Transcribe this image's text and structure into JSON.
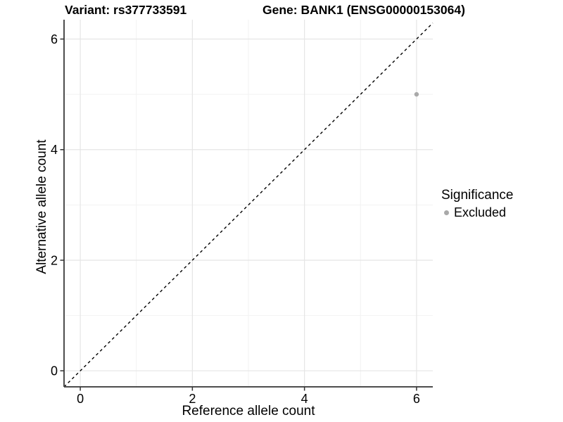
{
  "titles": {
    "variant": "Variant: rs377733591",
    "gene": "Gene: BANK1 (ENSG00000153064)"
  },
  "chart_data": {
    "type": "scatter",
    "title_left": "Variant: rs377733591",
    "title_right": "Gene: BANK1 (ENSG00000153064)",
    "xlabel": "Reference allele count",
    "ylabel": "Alternative allele count",
    "xlim": [
      -0.29,
      6.29
    ],
    "ylim": [
      -0.29,
      6.35
    ],
    "xticks": [
      0,
      2,
      4,
      6
    ],
    "yticks": [
      0,
      2,
      4,
      6
    ],
    "minor_xticks": [
      1,
      3,
      5
    ],
    "minor_yticks": [
      1,
      3,
      5
    ],
    "grid": true,
    "points": [
      {
        "x": 6,
        "y": 5,
        "series": "Excluded"
      }
    ],
    "identity_line": {
      "slope": 1,
      "intercept": 0,
      "style": "dashed"
    },
    "legend": {
      "title": "Significance",
      "position": "right",
      "items": [
        {
          "label": "Excluded",
          "color": "#a9a9a9"
        }
      ]
    }
  },
  "colors": {
    "point": "#a9a9a9",
    "grid_major": "#e5e5e5",
    "grid_minor": "#f2f2f2",
    "axis_line": "#4d4d4d",
    "tick_mark": "#333333",
    "identity_line": "#000000",
    "text": "#000000"
  }
}
